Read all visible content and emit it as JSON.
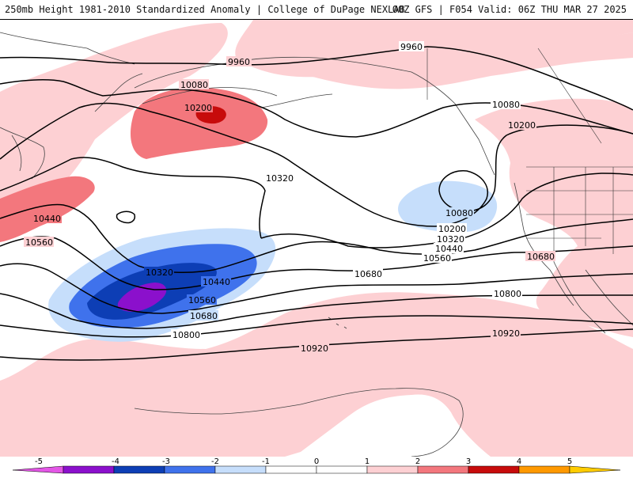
{
  "header": {
    "left_title": "250mb Height 1981-2010 Standardized Anomaly | College of DuPage NEXLAB",
    "right_title": "00Z GFS | F054 Valid: 06Z THU MAR 27 2025"
  },
  "colors": {
    "anom_neg5": "#e356e6",
    "anom_neg4": "#8b10cc",
    "anom_neg3": "#0d3eb5",
    "anom_neg2": "#3f72ec",
    "anom_neg1": "#c6defb",
    "anom_zero": "#ffffff",
    "anom_pos1": "#fdd0d3",
    "anom_pos2": "#f3777d",
    "anom_pos3": "#c70b0b",
    "anom_pos4": "#ff9900",
    "contour": "#000000",
    "coast": "#444444"
  },
  "contour_labels": [
    {
      "id": "9960-a",
      "text": "9960"
    },
    {
      "id": "9960-b",
      "text": "9960"
    },
    {
      "id": "10080-a",
      "text": "10080"
    },
    {
      "id": "10080-b",
      "text": "10080"
    },
    {
      "id": "10080-c",
      "text": "10080"
    },
    {
      "id": "10200-a",
      "text": "10200"
    },
    {
      "id": "10200-b",
      "text": "10200"
    },
    {
      "id": "10200-c",
      "text": "10200"
    },
    {
      "id": "10320-a",
      "text": "10320"
    },
    {
      "id": "10320-b",
      "text": "10320"
    },
    {
      "id": "10320-c",
      "text": "10320"
    },
    {
      "id": "10440-a",
      "text": "10440"
    },
    {
      "id": "10440-b",
      "text": "10440"
    },
    {
      "id": "10440-c",
      "text": "10440"
    },
    {
      "id": "10560-a",
      "text": "10560"
    },
    {
      "id": "10560-b",
      "text": "10560"
    },
    {
      "id": "10560-c",
      "text": "10560"
    },
    {
      "id": "10680-a",
      "text": "10680"
    },
    {
      "id": "10680-b",
      "text": "10680"
    },
    {
      "id": "10680-c",
      "text": "10680"
    },
    {
      "id": "10800-a",
      "text": "10800"
    },
    {
      "id": "10800-b",
      "text": "10800"
    },
    {
      "id": "10920-a",
      "text": "10920"
    },
    {
      "id": "10920-b",
      "text": "10920"
    }
  ],
  "colorbar": {
    "ticks": [
      "-5",
      "-4",
      "-3",
      "-2",
      "-1",
      "0",
      "1",
      "2",
      "3",
      "4",
      "5"
    ]
  }
}
